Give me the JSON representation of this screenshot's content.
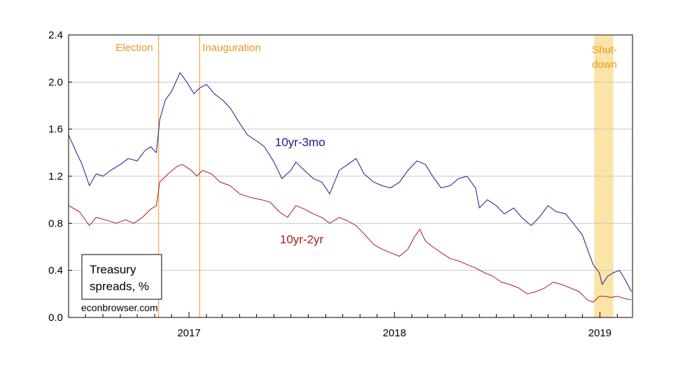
{
  "chart_data": {
    "type": "line",
    "title_box": [
      "Treasury",
      "spreads, %"
    ],
    "credit": "econbrowser.com",
    "x_range": [
      "2016-06-01",
      "2019-02-28"
    ],
    "x_tick_labels": [
      {
        "date": "2017-01-01",
        "label": "2017"
      },
      {
        "date": "2018-01-01",
        "label": "2018"
      },
      {
        "date": "2019-01-01",
        "label": "2019"
      }
    ],
    "ylim": [
      0.0,
      2.4
    ],
    "yticks": [
      "0.0",
      "0.4",
      "0.8",
      "1.2",
      "1.6",
      "2.0",
      "2.4"
    ],
    "grid": true,
    "events": [
      {
        "date": "2016-11-08",
        "label": "Election"
      },
      {
        "date": "2017-01-20",
        "label": "Inauguration"
      }
    ],
    "shade": {
      "start": "2018-12-22",
      "end": "2019-01-25",
      "label_lines": [
        "Shut-",
        "down"
      ],
      "color": "#fbe4a8"
    },
    "event_color": "#f0961e",
    "series": [
      {
        "name": "10yr-3mo",
        "color": "#1a1a8c",
        "points": [
          [
            "2016-06-01",
            1.55
          ],
          [
            "2016-06-15",
            1.4
          ],
          [
            "2016-06-25",
            1.3
          ],
          [
            "2016-07-08",
            1.12
          ],
          [
            "2016-07-20",
            1.22
          ],
          [
            "2016-08-01",
            1.2
          ],
          [
            "2016-08-15",
            1.25
          ],
          [
            "2016-09-01",
            1.3
          ],
          [
            "2016-09-15",
            1.35
          ],
          [
            "2016-10-01",
            1.33
          ],
          [
            "2016-10-15",
            1.42
          ],
          [
            "2016-10-25",
            1.45
          ],
          [
            "2016-11-04",
            1.4
          ],
          [
            "2016-11-10",
            1.68
          ],
          [
            "2016-11-20",
            1.85
          ],
          [
            "2016-12-01",
            1.92
          ],
          [
            "2016-12-16",
            2.08
          ],
          [
            "2016-12-28",
            2.0
          ],
          [
            "2017-01-10",
            1.9
          ],
          [
            "2017-01-20",
            1.95
          ],
          [
            "2017-02-01",
            1.98
          ],
          [
            "2017-02-15",
            1.9
          ],
          [
            "2017-03-01",
            1.85
          ],
          [
            "2017-03-15",
            1.78
          ],
          [
            "2017-04-01",
            1.65
          ],
          [
            "2017-04-15",
            1.55
          ],
          [
            "2017-05-01",
            1.5
          ],
          [
            "2017-05-15",
            1.45
          ],
          [
            "2017-06-01",
            1.32
          ],
          [
            "2017-06-15",
            1.18
          ],
          [
            "2017-07-01",
            1.25
          ],
          [
            "2017-07-10",
            1.32
          ],
          [
            "2017-07-25",
            1.25
          ],
          [
            "2017-08-10",
            1.18
          ],
          [
            "2017-08-25",
            1.15
          ],
          [
            "2017-09-08",
            1.05
          ],
          [
            "2017-09-25",
            1.25
          ],
          [
            "2017-10-10",
            1.3
          ],
          [
            "2017-10-25",
            1.35
          ],
          [
            "2017-11-08",
            1.22
          ],
          [
            "2017-11-25",
            1.15
          ],
          [
            "2017-12-10",
            1.12
          ],
          [
            "2017-12-25",
            1.1
          ],
          [
            "2018-01-10",
            1.15
          ],
          [
            "2018-01-25",
            1.25
          ],
          [
            "2018-02-10",
            1.33
          ],
          [
            "2018-02-25",
            1.3
          ],
          [
            "2018-03-10",
            1.2
          ],
          [
            "2018-03-25",
            1.1
          ],
          [
            "2018-04-10",
            1.12
          ],
          [
            "2018-04-25",
            1.18
          ],
          [
            "2018-05-10",
            1.2
          ],
          [
            "2018-05-25",
            1.1
          ],
          [
            "2018-06-01",
            0.93
          ],
          [
            "2018-06-15",
            1.0
          ],
          [
            "2018-07-01",
            0.95
          ],
          [
            "2018-07-15",
            0.88
          ],
          [
            "2018-08-01",
            0.93
          ],
          [
            "2018-08-15",
            0.85
          ],
          [
            "2018-09-01",
            0.78
          ],
          [
            "2018-09-15",
            0.85
          ],
          [
            "2018-10-01",
            0.95
          ],
          [
            "2018-10-15",
            0.9
          ],
          [
            "2018-11-01",
            0.88
          ],
          [
            "2018-11-15",
            0.8
          ],
          [
            "2018-12-01",
            0.7
          ],
          [
            "2018-12-10",
            0.58
          ],
          [
            "2018-12-20",
            0.45
          ],
          [
            "2018-12-31",
            0.38
          ],
          [
            "2019-01-05",
            0.28
          ],
          [
            "2019-01-15",
            0.35
          ],
          [
            "2019-01-25",
            0.38
          ],
          [
            "2019-02-05",
            0.4
          ],
          [
            "2019-02-15",
            0.32
          ],
          [
            "2019-02-26",
            0.22
          ]
        ]
      },
      {
        "name": "10yr-2yr",
        "color": "#b01818",
        "points": [
          [
            "2016-06-01",
            0.95
          ],
          [
            "2016-06-20",
            0.9
          ],
          [
            "2016-07-08",
            0.78
          ],
          [
            "2016-07-20",
            0.85
          ],
          [
            "2016-08-05",
            0.83
          ],
          [
            "2016-08-25",
            0.8
          ],
          [
            "2016-09-10",
            0.83
          ],
          [
            "2016-09-25",
            0.8
          ],
          [
            "2016-10-10",
            0.85
          ],
          [
            "2016-10-25",
            0.92
          ],
          [
            "2016-11-04",
            0.95
          ],
          [
            "2016-11-10",
            1.15
          ],
          [
            "2016-11-25",
            1.22
          ],
          [
            "2016-12-10",
            1.28
          ],
          [
            "2016-12-20",
            1.3
          ],
          [
            "2017-01-05",
            1.25
          ],
          [
            "2017-01-15",
            1.2
          ],
          [
            "2017-01-25",
            1.25
          ],
          [
            "2017-02-10",
            1.22
          ],
          [
            "2017-02-25",
            1.15
          ],
          [
            "2017-03-15",
            1.12
          ],
          [
            "2017-04-01",
            1.05
          ],
          [
            "2017-04-20",
            1.02
          ],
          [
            "2017-05-10",
            1.0
          ],
          [
            "2017-05-25",
            0.98
          ],
          [
            "2017-06-10",
            0.9
          ],
          [
            "2017-06-25",
            0.85
          ],
          [
            "2017-07-10",
            0.95
          ],
          [
            "2017-07-25",
            0.92
          ],
          [
            "2017-08-10",
            0.88
          ],
          [
            "2017-08-25",
            0.85
          ],
          [
            "2017-09-08",
            0.8
          ],
          [
            "2017-09-25",
            0.85
          ],
          [
            "2017-10-10",
            0.82
          ],
          [
            "2017-10-25",
            0.78
          ],
          [
            "2017-11-10",
            0.7
          ],
          [
            "2017-11-25",
            0.62
          ],
          [
            "2017-12-10",
            0.58
          ],
          [
            "2017-12-25",
            0.55
          ],
          [
            "2018-01-10",
            0.52
          ],
          [
            "2018-01-25",
            0.58
          ],
          [
            "2018-02-05",
            0.68
          ],
          [
            "2018-02-15",
            0.75
          ],
          [
            "2018-02-25",
            0.65
          ],
          [
            "2018-03-10",
            0.6
          ],
          [
            "2018-03-25",
            0.55
          ],
          [
            "2018-04-10",
            0.5
          ],
          [
            "2018-04-25",
            0.48
          ],
          [
            "2018-05-10",
            0.45
          ],
          [
            "2018-05-25",
            0.42
          ],
          [
            "2018-06-10",
            0.38
          ],
          [
            "2018-06-25",
            0.35
          ],
          [
            "2018-07-10",
            0.3
          ],
          [
            "2018-07-25",
            0.28
          ],
          [
            "2018-08-10",
            0.25
          ],
          [
            "2018-08-25",
            0.2
          ],
          [
            "2018-09-10",
            0.22
          ],
          [
            "2018-09-25",
            0.25
          ],
          [
            "2018-10-10",
            0.3
          ],
          [
            "2018-10-25",
            0.28
          ],
          [
            "2018-11-10",
            0.25
          ],
          [
            "2018-11-25",
            0.22
          ],
          [
            "2018-12-10",
            0.15
          ],
          [
            "2018-12-20",
            0.13
          ],
          [
            "2018-12-31",
            0.18
          ],
          [
            "2019-01-10",
            0.18
          ],
          [
            "2019-01-20",
            0.17
          ],
          [
            "2019-02-01",
            0.18
          ],
          [
            "2019-02-15",
            0.16
          ],
          [
            "2019-02-26",
            0.15
          ]
        ]
      }
    ]
  }
}
